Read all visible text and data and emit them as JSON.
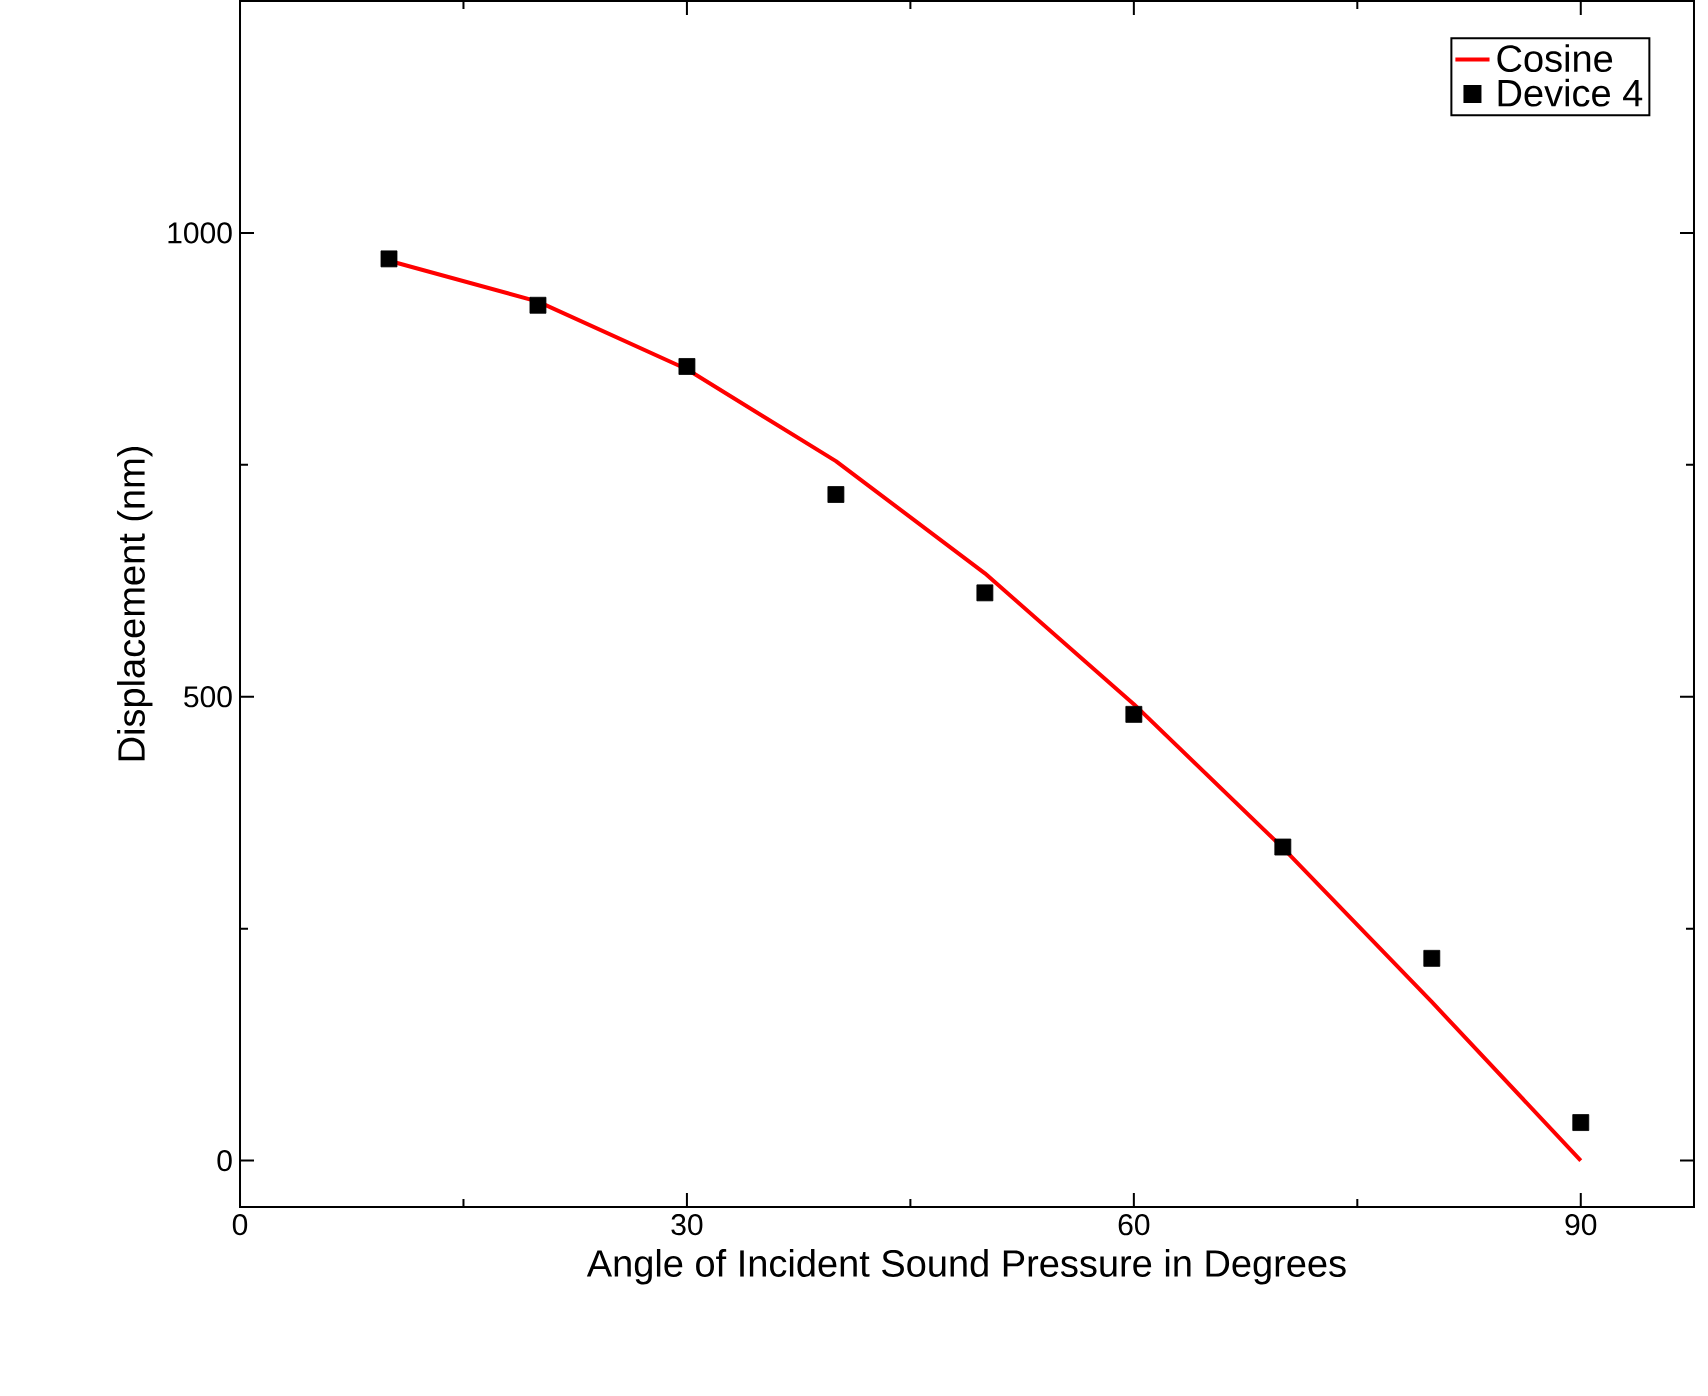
{
  "chart_data": {
    "type": "line",
    "xlabel": "Angle of Incident Sound Pressure in Degrees",
    "ylabel": "Displacement (nm)",
    "xlim": [
      0,
      97.6
    ],
    "ylim": [
      -50,
      1250
    ],
    "xticks": [
      0,
      30,
      60,
      90
    ],
    "yticks": [
      0,
      500,
      1000
    ],
    "legend": "top right",
    "grid": false,
    "series": [
      {
        "name": "Cosine",
        "color": "#ff0000",
        "marker": "none",
        "line_style": "solid",
        "x": [
          10,
          20,
          30,
          40,
          50,
          60,
          70,
          80,
          90
        ],
        "values": [
          970,
          926,
          853,
          754,
          633,
          492,
          337,
          171,
          0
        ]
      },
      {
        "name": "Device 4",
        "type": "scatter",
        "color": "#000000",
        "marker": "square",
        "x": [
          10,
          20,
          30,
          40,
          50,
          60,
          70,
          80,
          90
        ],
        "values": [
          972,
          922,
          856,
          718,
          612,
          481,
          338,
          218,
          41
        ]
      }
    ]
  }
}
